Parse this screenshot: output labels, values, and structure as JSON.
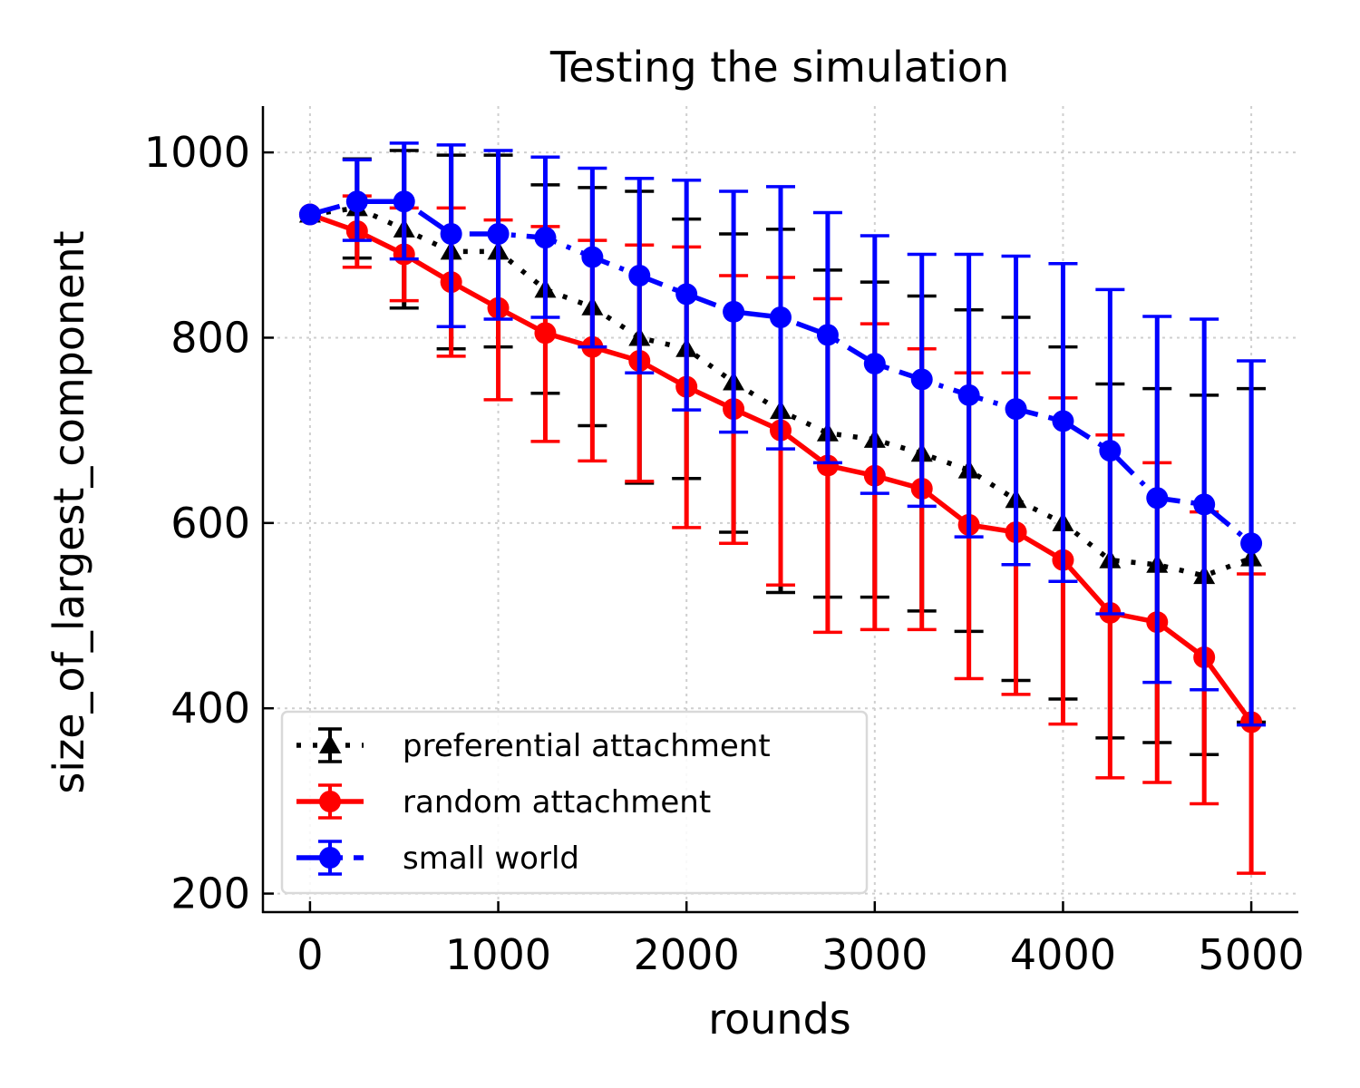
{
  "chart_data": {
    "type": "line",
    "title": "Testing the simulation",
    "xlabel": "rounds",
    "ylabel": "size_of_largest_component",
    "xlim": [
      -250,
      5250
    ],
    "ylim": [
      180,
      1050
    ],
    "xticks": [
      0,
      1000,
      2000,
      3000,
      4000,
      5000
    ],
    "yticks": [
      200,
      400,
      600,
      800,
      1000
    ],
    "grid": true,
    "legend_position": "lower-left",
    "x": [
      0,
      250,
      500,
      750,
      1000,
      1250,
      1500,
      1750,
      2000,
      2250,
      2500,
      2750,
      3000,
      3250,
      3500,
      3750,
      4000,
      4250,
      4500,
      4750,
      5000
    ],
    "series": [
      {
        "name": "preferential attachment",
        "color": "#000000",
        "linestyle": "dotted",
        "marker": "triangle",
        "values": [
          933,
          940,
          917,
          893,
          893,
          852,
          833,
          800,
          788,
          752,
          721,
          697,
          690,
          675,
          657,
          625,
          600,
          560,
          555,
          543,
          562
        ],
        "err_low": [
          933,
          886,
          832,
          788,
          790,
          740,
          705,
          643,
          648,
          590,
          525,
          520,
          520,
          505,
          483,
          430,
          410,
          368,
          363,
          350,
          385
        ],
        "err_high": [
          933,
          993,
          1002,
          997,
          997,
          965,
          962,
          958,
          928,
          912,
          917,
          873,
          860,
          845,
          830,
          822,
          790,
          750,
          745,
          738,
          745
        ]
      },
      {
        "name": "random attachment",
        "color": "#ff0000",
        "linestyle": "solid",
        "marker": "circle",
        "values": [
          933,
          915,
          890,
          860,
          832,
          805,
          790,
          775,
          747,
          723,
          700,
          662,
          651,
          637,
          598,
          590,
          560,
          503,
          493,
          455,
          385
        ],
        "err_low": [
          933,
          876,
          840,
          780,
          733,
          688,
          667,
          645,
          595,
          578,
          533,
          482,
          485,
          485,
          432,
          415,
          383,
          325,
          320,
          297,
          222
        ],
        "err_high": [
          933,
          953,
          940,
          940,
          927,
          920,
          905,
          900,
          898,
          867,
          865,
          842,
          815,
          788,
          762,
          762,
          735,
          695,
          665,
          612,
          545
        ]
      },
      {
        "name": "small world",
        "color": "#0000ff",
        "linestyle": "dashdot",
        "marker": "circle",
        "values": [
          933,
          947,
          947,
          912,
          912,
          908,
          887,
          867,
          847,
          828,
          822,
          803,
          772,
          755,
          738,
          723,
          710,
          678,
          627,
          620,
          578
        ],
        "err_low": [
          933,
          905,
          885,
          812,
          820,
          822,
          790,
          762,
          722,
          698,
          680,
          665,
          632,
          618,
          585,
          555,
          537,
          502,
          428,
          420,
          382
        ],
        "err_high": [
          933,
          992,
          1010,
          1008,
          1002,
          995,
          983,
          972,
          970,
          958,
          963,
          935,
          910,
          890,
          890,
          888,
          880,
          852,
          823,
          820,
          775
        ]
      }
    ]
  }
}
